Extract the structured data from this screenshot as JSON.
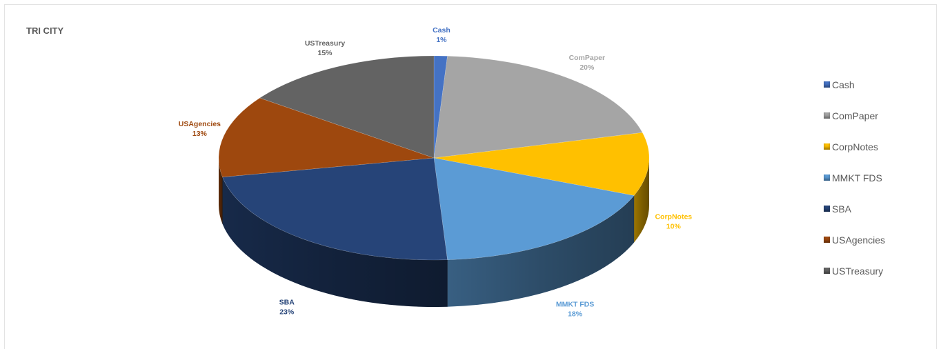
{
  "chart_data": {
    "type": "pie",
    "title": "TRI CITY",
    "slices": [
      {
        "label": "Cash",
        "value": 1,
        "display": "1%",
        "color": "#4472c4"
      },
      {
        "label": "ComPaper",
        "value": 20,
        "display": "20%",
        "color": "#a5a5a5"
      },
      {
        "label": "CorpNotes",
        "value": 10,
        "display": "10%",
        "color": "#ffc000"
      },
      {
        "label": "MMKT FDS",
        "value": 18,
        "display": "18%",
        "color": "#5b9bd5"
      },
      {
        "label": "SBA",
        "value": 23,
        "display": "23%",
        "color": "#264478"
      },
      {
        "label": "USAgencies",
        "value": 13,
        "display": "13%",
        "color": "#9e480e"
      },
      {
        "label": "USTreasury",
        "value": 15,
        "display": "15%",
        "color": "#636363"
      }
    ],
    "legend": {
      "position": "right"
    },
    "style": "3d-pie",
    "data_labels": "category name and percentage"
  }
}
